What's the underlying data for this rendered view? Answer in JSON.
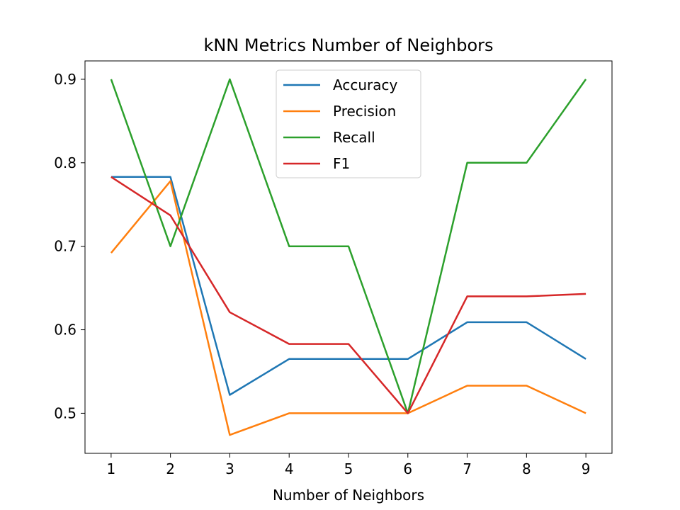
{
  "chart_data": {
    "type": "line",
    "title": "kNN Metrics Number of Neighbors",
    "xlabel": "Number of Neighbors",
    "ylabel": "",
    "x": [
      1,
      2,
      3,
      4,
      5,
      6,
      7,
      8,
      9
    ],
    "xlim": [
      0.56,
      9.44
    ],
    "ylim": [
      0.452,
      0.922
    ],
    "xticks": [
      "1",
      "2",
      "3",
      "4",
      "5",
      "6",
      "7",
      "8",
      "9"
    ],
    "yticks": [
      "0.5",
      "0.6",
      "0.7",
      "0.8",
      "0.9"
    ],
    "grid": false,
    "legend_position": "upper center",
    "series": [
      {
        "name": "Accuracy",
        "color": "#1f77b4",
        "values": [
          0.783,
          0.783,
          0.522,
          0.565,
          0.565,
          0.565,
          0.609,
          0.609,
          0.565
        ]
      },
      {
        "name": "Precision",
        "color": "#ff7f0e",
        "values": [
          0.692,
          0.778,
          0.474,
          0.5,
          0.5,
          0.5,
          0.533,
          0.533,
          0.5
        ]
      },
      {
        "name": "Recall",
        "color": "#2ca02c",
        "values": [
          0.9,
          0.7,
          0.9,
          0.7,
          0.7,
          0.5,
          0.8,
          0.8,
          0.9
        ]
      },
      {
        "name": "F1",
        "color": "#d62728",
        "values": [
          0.783,
          0.737,
          0.621,
          0.583,
          0.583,
          0.5,
          0.64,
          0.64,
          0.643
        ]
      }
    ]
  }
}
